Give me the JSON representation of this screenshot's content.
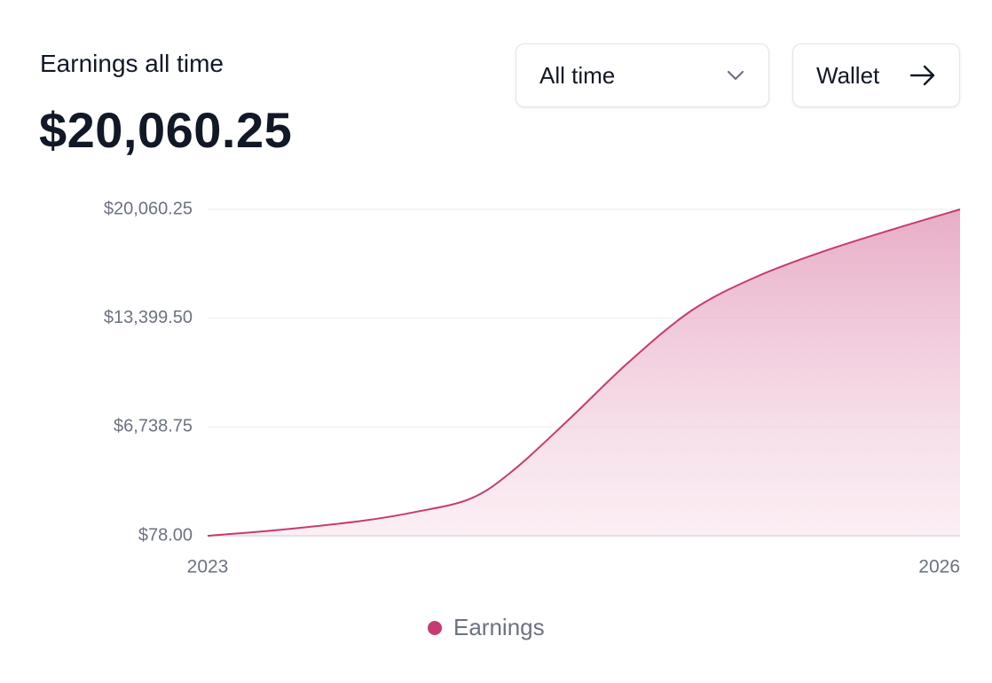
{
  "header": {
    "title": "Earnings all time",
    "total": "$20,060.25"
  },
  "controls": {
    "range": "All time",
    "wallet": "Wallet"
  },
  "chart_data": {
    "type": "area",
    "x": [
      2023,
      2023.3,
      2023.62,
      2023.83,
      2024.05,
      2024.22,
      2024.44,
      2024.68,
      2024.93,
      2025.18,
      2025.46,
      2025.75,
      2026
    ],
    "series": [
      {
        "name": "Earnings",
        "color": "#c63b71",
        "values": [
          78,
          460,
          1000,
          1540,
          2360,
          4100,
          7190,
          10720,
          13870,
          15880,
          17510,
          18920,
          20060.25
        ]
      }
    ],
    "xlim": [
      2023,
      2026
    ],
    "xticks": [
      2023,
      2026
    ],
    "ylim": [
      78,
      20060.25
    ],
    "yticks": [
      {
        "value": 78,
        "label": "$78.00"
      },
      {
        "value": 6738.75,
        "label": "$6,738.75"
      },
      {
        "value": 13399.5,
        "label": "$13,399.50"
      },
      {
        "value": 20060.25,
        "label": "$20,060.25"
      }
    ],
    "grid": true,
    "legend": "bottom"
  }
}
